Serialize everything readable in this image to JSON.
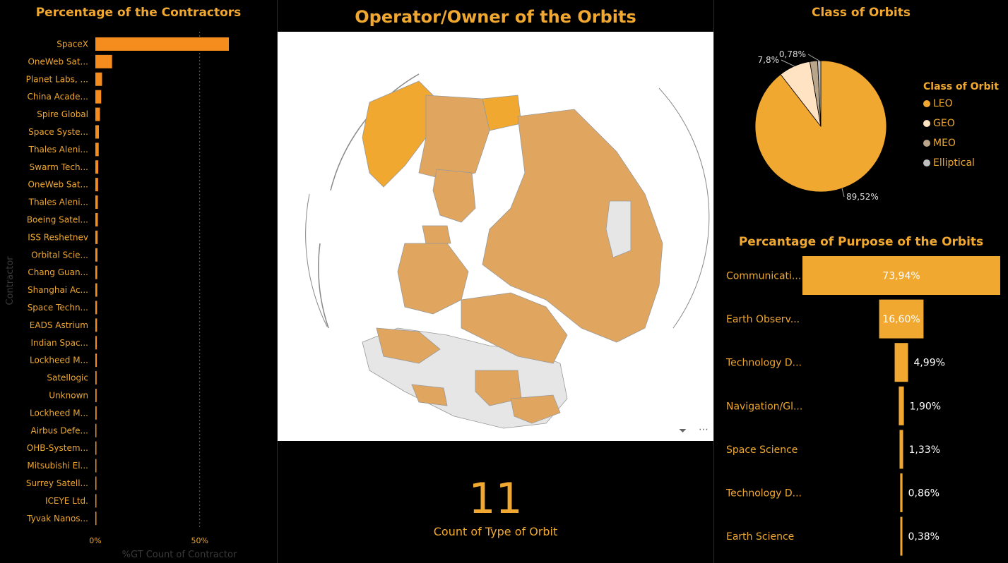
{
  "colors": {
    "accent": "#F0A830",
    "map_fill": "#E0A660",
    "map_gray": "#E6E6E6"
  },
  "contractors": {
    "title": "Percentage of the Contractors",
    "axis_title": "Contractor",
    "x_axis_title": "%GT Count of Contractor"
  },
  "map": {
    "title": "Operator/Owner of the Orbits",
    "filter_icon": "filter-icon",
    "more_icon": "more-options-icon"
  },
  "kpi": {
    "value": "11",
    "label": "Count of Type of Orbit"
  },
  "pie": {
    "title": "Class of Orbits",
    "legend_title": "Class of Orbit"
  },
  "purpose": {
    "title": "Percantage of Purpose of the Orbits"
  },
  "chart_data": [
    {
      "type": "bar",
      "orientation": "horizontal",
      "title": "Percentage of the Contractors",
      "ylabel": "Contractor",
      "xlabel": "%GT Count of Contractor",
      "xticks": [
        "0%",
        "50%"
      ],
      "xlim": [
        0,
        65
      ],
      "grid": true,
      "categories": [
        "SpaceX",
        "OneWeb Sat...",
        "Planet Labs, ...",
        "China Acade...",
        "Spire Global",
        "Space Syste...",
        "Thales Aleni...",
        "Swarm Tech...",
        "OneWeb Sat...",
        "Thales Aleni...",
        "Boeing Satel...",
        "ISS Reshetnev",
        "Orbital Scie...",
        "Chang Guan...",
        "Shanghai Ac...",
        "Space Techn...",
        "EADS Astrium",
        "Indian Spac...",
        "Lockheed M...",
        "Satellogic",
        "Unknown",
        "Lockheed M...",
        "Airbus Defe...",
        "OHB-System...",
        "Mitsubishi El...",
        "Surrey Satell...",
        "ICEYE Ltd.",
        "Tyvak Nanos..."
      ],
      "values": [
        64,
        8,
        3.2,
        2.8,
        2.2,
        1.7,
        1.6,
        1.4,
        1.3,
        1.2,
        1.2,
        1.1,
        1.0,
        0.9,
        0.9,
        0.8,
        0.8,
        0.7,
        0.7,
        0.6,
        0.6,
        0.6,
        0.5,
        0.5,
        0.5,
        0.4,
        0.4,
        0.4
      ]
    },
    {
      "type": "pie",
      "title": "Class of Orbits",
      "legend_title": "Class of Orbit",
      "legend_position": "right",
      "categories": [
        "LEO",
        "GEO",
        "MEO",
        "Elliptical"
      ],
      "values": [
        89.52,
        7.8,
        1.9,
        0.78
      ],
      "labels": [
        "89,52%",
        "7,8%",
        "",
        "0,78%"
      ],
      "colors": [
        "#F0A830",
        "#FFE3C2",
        "#B8A58A",
        "#BFBFBF"
      ]
    },
    {
      "type": "bar",
      "orientation": "funnel",
      "title": "Percantage of Purpose of the Orbits",
      "categories": [
        "Communicati...",
        "Earth Observ...",
        "Technology D...",
        "Navigation/Gl...",
        "Space Science",
        "Technology D...",
        "Earth Science"
      ],
      "values": [
        73.94,
        16.6,
        4.99,
        1.9,
        1.33,
        0.86,
        0.38
      ],
      "labels": [
        "73,94%",
        "16,60%",
        "4,99%",
        "1,90%",
        "1,33%",
        "0,86%",
        "0,38%"
      ]
    }
  ]
}
